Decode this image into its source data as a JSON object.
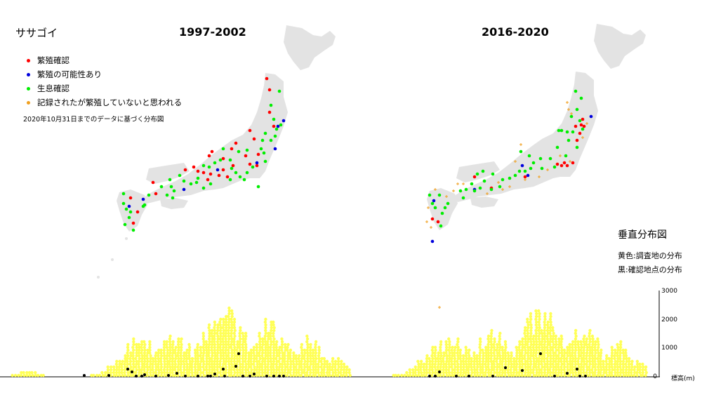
{
  "species": "ササゴイ",
  "panels": [
    {
      "title": "1997-2002"
    },
    {
      "title": "2016-2020"
    }
  ],
  "legend": [
    {
      "label": "繁殖確認",
      "color": "#ff0000"
    },
    {
      "label": "繁殖の可能性あり",
      "color": "#0000dd"
    },
    {
      "label": "生息確認",
      "color": "#00ee00"
    },
    {
      "label": "記録されたが繁殖していないと思われる",
      "color": "#f0a020"
    }
  ],
  "legend_note": "2020年10月31日までのデータに基づく分布図",
  "vertical": {
    "title": "垂直分布図",
    "yellow_note": "黄色:調査地の分布",
    "black_note": "黒:確認地点の分布",
    "ticks": [
      "0",
      "1000",
      "2000",
      "3000"
    ],
    "unit": "標高(m)",
    "survey_color": "#ffff55",
    "found_color": "#000000"
  },
  "colors": {
    "land": "#e3e3e3",
    "breeding": "#ff0000",
    "possible": "#0000dd",
    "present": "#00ee00",
    "non_breeding": "#f0a020"
  }
}
